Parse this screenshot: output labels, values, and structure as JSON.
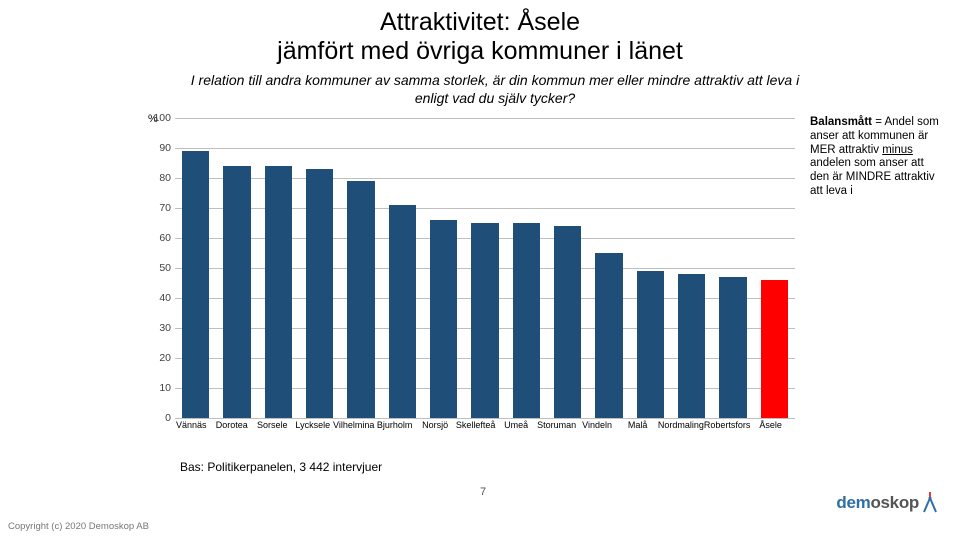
{
  "title": {
    "line1": "Attraktivitet: Åsele",
    "line2": "jämfört med övriga kommuner i länet"
  },
  "subtitle": "I relation till andra kommuner av samma storlek, är din kommun mer eller mindre attraktiv att leva i enligt vad du själv tycker?",
  "y_label": "%",
  "chart": {
    "type": "bar",
    "categories": [
      "Vännäs",
      "Dorotea",
      "Sorsele",
      "Lycksele",
      "Vilhelmina",
      "Bjurholm",
      "Norsjö",
      "Skellefteå",
      "Umeå",
      "Storuman",
      "Vindeln",
      "Malå",
      "Nordmaling",
      "Robertsfors",
      "Åsele"
    ],
    "values": [
      89,
      84,
      84,
      83,
      79,
      71,
      66,
      65,
      65,
      64,
      55,
      49,
      48,
      47,
      46
    ],
    "bar_default_color": "#1f4e79",
    "bar_highlight_color": "#ff0000",
    "highlight_index": 14,
    "ylim_max": 100,
    "ylim_min": 0,
    "ytick_step": 10,
    "grid_color": "#bfbfbf",
    "background_color": "#ffffff",
    "label_fontsize": 9,
    "tick_fontsize": 10.5
  },
  "annotation": {
    "bold": "Balansmått",
    "rest1": " = Andel som anser att kommunen är MER attraktiv ",
    "underline": "minus",
    "rest2": " andelen som anser att den är MINDRE attraktiv att leva i"
  },
  "base_text": "Bas: Politikerpanelen, 3 442 intervjuer",
  "page_number": "7",
  "copyright": "Copyright (c)  2020  Demoskop AB",
  "logo": {
    "text_blue": "dem",
    "text_gray": "oskop",
    "mark_color_primary": "#2f6fa8",
    "mark_color_accent": "#e63a2e"
  }
}
